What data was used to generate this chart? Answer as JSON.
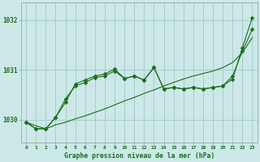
{
  "bg_color": "#cce8e8",
  "grid_color": "#aacccc",
  "line_color": "#1a6e1a",
  "title": "Graphe pression niveau de la mer (hPa)",
  "yticks": [
    1030,
    1031,
    1032
  ],
  "ylim": [
    1029.55,
    1032.35
  ],
  "xlim": [
    -0.5,
    23.5
  ],
  "xticks": [
    0,
    1,
    2,
    3,
    4,
    5,
    6,
    7,
    8,
    9,
    10,
    11,
    12,
    13,
    14,
    15,
    16,
    17,
    18,
    19,
    20,
    21,
    22,
    23
  ],
  "series1_x": [
    0,
    1,
    2,
    3,
    4,
    5,
    6,
    7,
    8,
    9,
    10,
    11,
    12,
    13,
    14,
    15,
    16,
    17,
    18,
    19,
    20,
    21,
    22,
    23
  ],
  "series1_y": [
    1029.95,
    1029.88,
    1029.82,
    1029.9,
    1029.95,
    1030.02,
    1030.08,
    1030.15,
    1030.22,
    1030.3,
    1030.38,
    1030.45,
    1030.53,
    1030.6,
    1030.68,
    1030.75,
    1030.82,
    1030.88,
    1030.93,
    1030.98,
    1031.05,
    1031.15,
    1031.35,
    1031.65
  ],
  "series2_x": [
    0,
    1,
    2,
    3,
    4,
    5,
    6,
    7,
    8,
    9,
    10,
    11,
    12,
    13,
    14,
    15,
    16,
    17,
    18,
    19,
    20,
    21,
    22,
    23
  ],
  "series2_y": [
    1029.95,
    1029.82,
    1029.82,
    1030.05,
    1030.42,
    1030.68,
    1030.75,
    1030.85,
    1030.88,
    1030.98,
    1030.83,
    1030.88,
    1030.8,
    1031.05,
    1030.62,
    1030.65,
    1030.62,
    1030.65,
    1030.62,
    1030.65,
    1030.68,
    1030.82,
    1031.45,
    1032.05
  ],
  "series3_x": [
    0,
    1,
    2,
    3,
    4,
    5,
    6,
    7,
    8,
    9,
    10,
    11,
    12,
    13,
    14,
    15,
    16,
    17,
    18,
    19,
    20,
    21,
    22,
    23
  ],
  "series3_y": [
    1029.95,
    1029.82,
    1029.82,
    1030.05,
    1030.35,
    1030.72,
    1030.8,
    1030.88,
    1030.92,
    1031.02,
    1030.83,
    1030.88,
    1030.8,
    1031.05,
    1030.62,
    1030.65,
    1030.62,
    1030.65,
    1030.62,
    1030.65,
    1030.68,
    1030.88,
    1031.38,
    1031.82
  ]
}
